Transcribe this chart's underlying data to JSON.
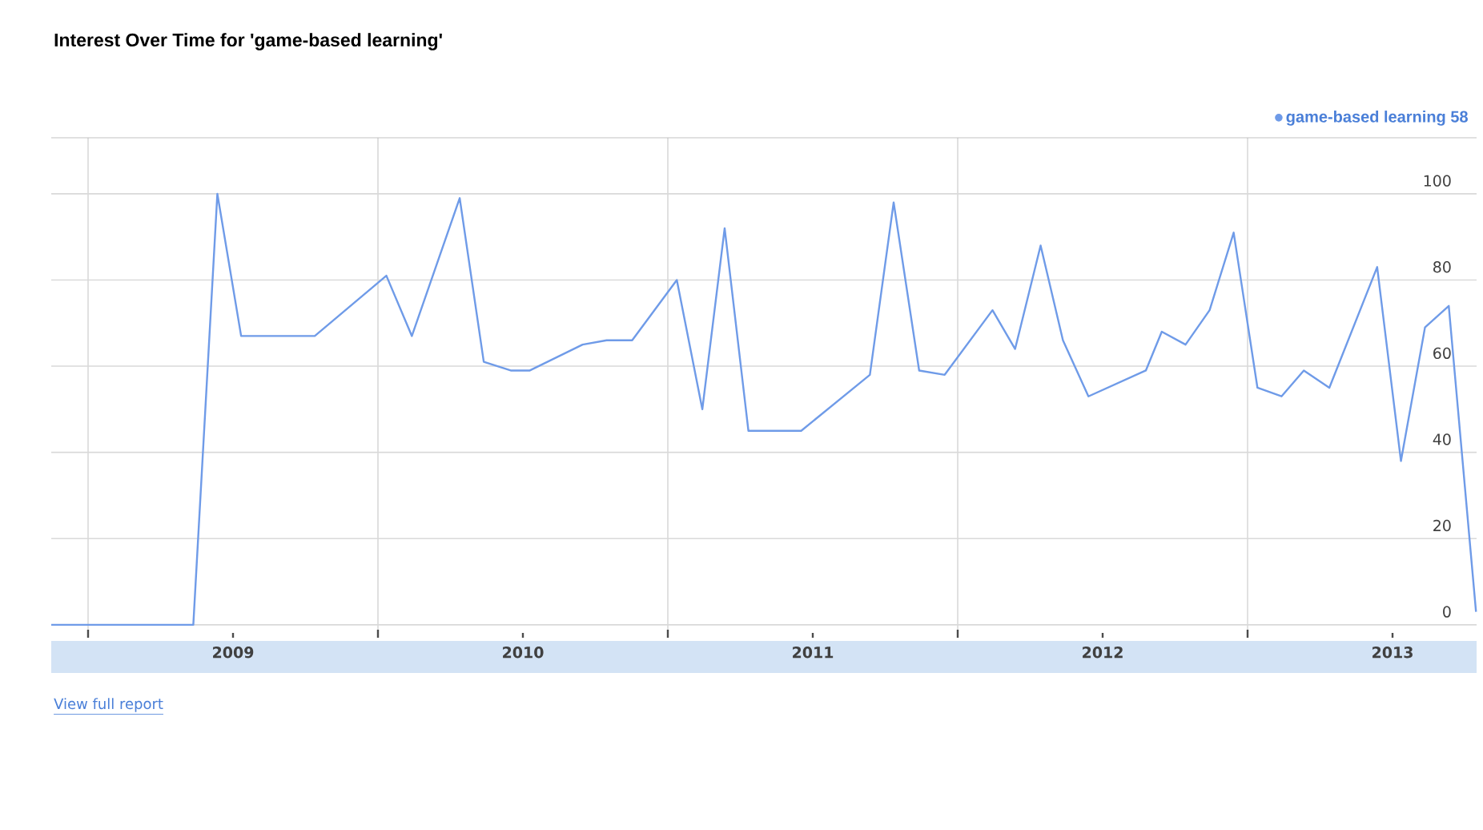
{
  "chart_data": {
    "type": "line",
    "title": "Interest Over Time for 'game-based learning'",
    "x": [
      2008.873,
      2009.363,
      2009.446,
      2009.528,
      2009.782,
      2010.029,
      2010.117,
      2010.282,
      2010.365,
      2010.458,
      2010.524,
      2010.706,
      2010.789,
      2010.877,
      2011.031,
      2011.119,
      2011.196,
      2011.278,
      2011.46,
      2011.697,
      2011.779,
      2011.867,
      2011.955,
      2012.12,
      2012.198,
      2012.286,
      2012.363,
      2012.451,
      2012.649,
      2012.704,
      2012.786,
      2012.869,
      2012.952,
      2013.034,
      2013.117,
      2013.194,
      2013.282,
      2013.447,
      2013.529,
      2013.612,
      2013.694,
      2013.788
    ],
    "series": [
      {
        "name": "game-based learning 58",
        "color": "#6f9be8",
        "values": [
          0,
          0,
          100,
          67,
          67,
          81,
          67,
          99,
          61,
          59,
          59,
          65,
          66,
          66,
          80,
          50,
          92,
          45,
          45,
          58,
          98,
          59,
          58,
          73,
          64,
          88,
          66,
          53,
          59,
          68,
          65,
          73,
          91,
          55,
          53,
          59,
          55,
          83,
          38,
          69,
          74,
          3
        ]
      }
    ],
    "xlim": [
      2008.873,
      2013.79
    ],
    "ylim": [
      -3,
      113
    ],
    "xticks": [
      {
        "value": 2009,
        "label": null
      },
      {
        "value": 2009.5,
        "label": "2009"
      },
      {
        "value": 2010,
        "label": null
      },
      {
        "value": 2010.5,
        "label": "2010"
      },
      {
        "value": 2011,
        "label": null
      },
      {
        "value": 2011.5,
        "label": "2011"
      },
      {
        "value": 2012,
        "label": null
      },
      {
        "value": 2012.5,
        "label": "2012"
      },
      {
        "value": 2013,
        "label": null
      },
      {
        "value": 2013.5,
        "label": "2013"
      }
    ],
    "yticks": [
      0,
      20,
      40,
      60,
      80,
      100
    ],
    "grid": true,
    "legend": "top right",
    "annotations": [
      "View full report"
    ]
  }
}
